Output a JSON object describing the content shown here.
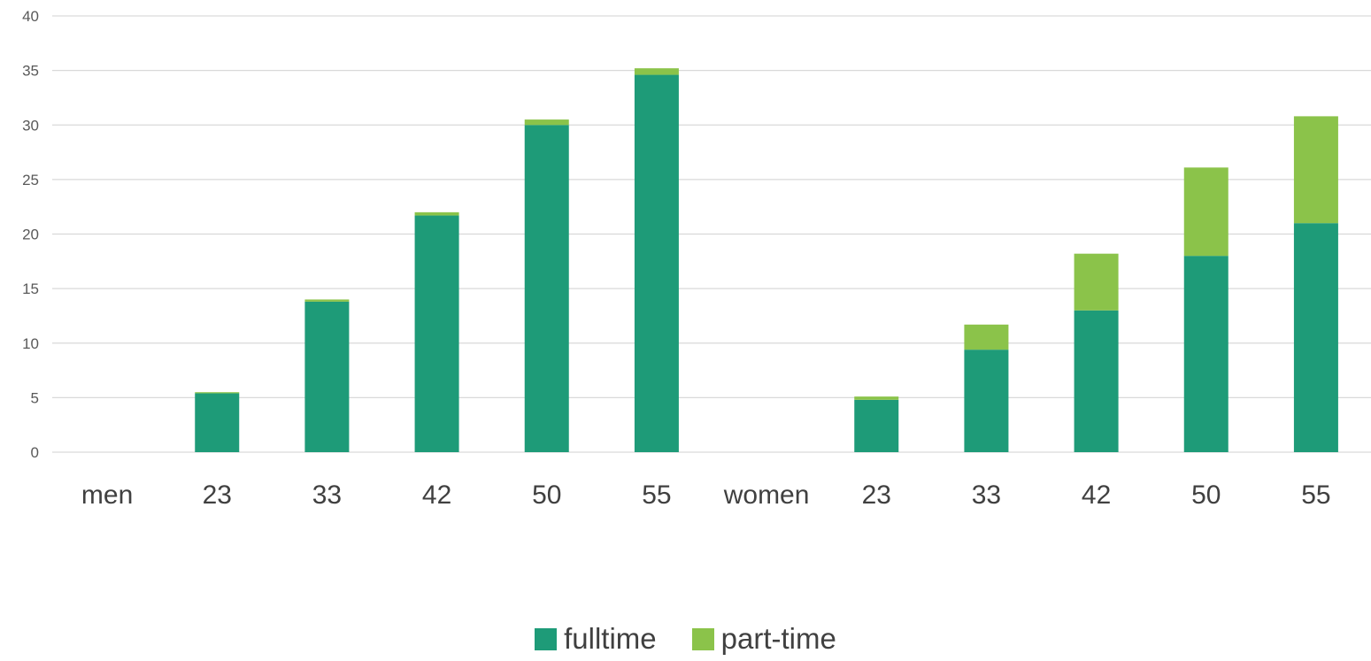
{
  "chart_data": {
    "type": "bar",
    "stacked": true,
    "categories": [
      "men",
      "23",
      "33",
      "42",
      "50",
      "55",
      "women",
      "23",
      "33",
      "42",
      "50",
      "55"
    ],
    "series": [
      {
        "name": "fulltime",
        "color": "#1e9b78",
        "values": [
          0,
          5.4,
          13.8,
          21.7,
          30.0,
          34.6,
          0,
          4.8,
          9.4,
          13.0,
          18.0,
          21.0
        ]
      },
      {
        "name": "part-time",
        "color": "#8bc34a",
        "values": [
          0,
          0.1,
          0.2,
          0.3,
          0.5,
          0.6,
          0,
          0.3,
          2.3,
          5.2,
          8.1,
          9.8
        ]
      }
    ],
    "ylim": [
      0,
      40
    ],
    "yticks": [
      "0",
      "5",
      "10",
      "15",
      "20",
      "25",
      "30",
      "35",
      "40"
    ],
    "grid": true,
    "legend_position": "bottom",
    "title": "",
    "xlabel": "",
    "ylabel": ""
  }
}
